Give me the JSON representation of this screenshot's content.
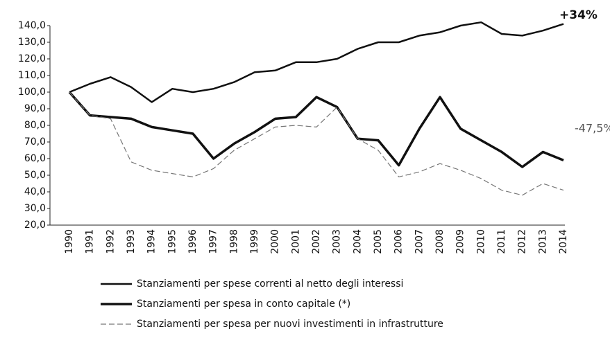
{
  "chart_data": {
    "type": "line",
    "categories": [
      "1990",
      "1991",
      "1992",
      "1993",
      "1994",
      "1995",
      "1996",
      "1997",
      "1998",
      "1999",
      "2000",
      "2001",
      "2002",
      "2003",
      "2004",
      "2005",
      "2006",
      "2007",
      "2008",
      "2009",
      "2010",
      "2011",
      "2012",
      "2013",
      "2014"
    ],
    "series": [
      {
        "name": "Stanziamenti per spese correnti al netto degli interessi",
        "color": "#111111",
        "values": [
          100,
          105,
          109,
          103,
          94,
          102,
          100,
          102,
          106,
          112,
          113,
          118,
          118,
          120,
          126,
          130,
          130,
          134,
          136,
          140,
          142,
          135,
          134,
          137,
          141
        ]
      },
      {
        "name": "Stanziamenti per spesa in conto capitale (*)",
        "color": "#111111",
        "values": [
          100,
          86,
          85,
          84,
          79,
          77,
          75,
          60,
          69,
          76,
          84,
          85,
          97,
          91,
          72,
          71,
          56,
          78,
          97,
          78,
          71,
          64,
          55,
          64,
          59
        ]
      },
      {
        "name": "Stanziamenti per spesa per nuovi investimenti in infrastrutture",
        "color": "#777777",
        "values": [
          100,
          86,
          84,
          58,
          53,
          51,
          49,
          54,
          65,
          72,
          79,
          80,
          79,
          91,
          72,
          65,
          49,
          52,
          57,
          53,
          48,
          41,
          38,
          45,
          41
        ]
      }
    ],
    "ylim": [
      20,
      140
    ],
    "yticks": [
      {
        "value": 20,
        "label": "20,0"
      },
      {
        "value": 30,
        "label": "30,0"
      },
      {
        "value": 40,
        "label": "40,0"
      },
      {
        "value": 50,
        "label": "50,0"
      },
      {
        "value": 60,
        "label": "60,0"
      },
      {
        "value": 70,
        "label": "70,0"
      },
      {
        "value": 80,
        "label": "80,0"
      },
      {
        "value": 90,
        "label": "90,0"
      },
      {
        "value": 100,
        "label": "100,0"
      },
      {
        "value": 110,
        "label": "110,0"
      },
      {
        "value": 120,
        "label": "120,0"
      },
      {
        "value": 130,
        "label": "130,0"
      },
      {
        "value": 140,
        "label": "140,0"
      }
    ],
    "annotations": [
      "+34%",
      "-47,5%"
    ]
  }
}
